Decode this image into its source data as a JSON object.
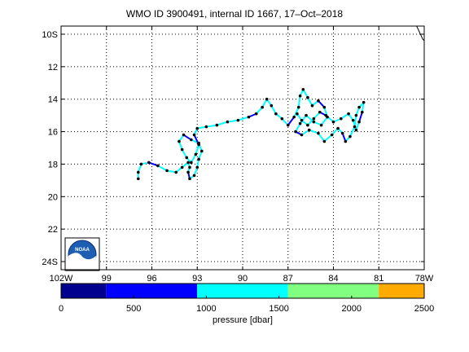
{
  "title": "WMO ID 3900491, internal ID 1667, 17–Oct–2018",
  "map": {
    "lat_ticks": [
      "10S",
      "12",
      "14",
      "16",
      "18",
      "20",
      "22",
      "24S"
    ],
    "lat_values": [
      -10,
      -12,
      -14,
      -16,
      -18,
      -20,
      -22,
      -24
    ],
    "lon_ticks": [
      "102W",
      "99",
      "96",
      "93",
      "90",
      "87",
      "84",
      "81",
      "78W"
    ],
    "lon_values": [
      -102,
      -99,
      -96,
      -93,
      -90,
      -87,
      -84,
      -81,
      -78
    ],
    "lon_range": [
      -102,
      -78
    ],
    "lat_range": [
      -24.5,
      -9.5
    ],
    "grid": true,
    "logo_label": "NOAA",
    "trajectory_lonlat": [
      [
        -96.9,
        -18.9
      ],
      [
        -96.9,
        -18.5
      ],
      [
        -96.7,
        -18.0
      ],
      [
        -96.2,
        -17.9
      ],
      [
        -95.6,
        -18.1
      ],
      [
        -95.0,
        -18.4
      ],
      [
        -94.4,
        -18.5
      ],
      [
        -94.0,
        -18.2
      ],
      [
        -93.6,
        -17.9
      ],
      [
        -93.5,
        -18.2
      ],
      [
        -93.6,
        -18.5
      ],
      [
        -93.5,
        -18.9
      ],
      [
        -93.2,
        -18.7
      ],
      [
        -93.0,
        -18.2
      ],
      [
        -92.9,
        -17.7
      ],
      [
        -92.7,
        -17.2
      ],
      [
        -92.9,
        -16.7
      ],
      [
        -93.4,
        -16.5
      ],
      [
        -93.9,
        -16.2
      ],
      [
        -94.2,
        -16.6
      ],
      [
        -94.0,
        -17.1
      ],
      [
        -93.7,
        -17.6
      ],
      [
        -93.4,
        -17.9
      ],
      [
        -93.1,
        -17.4
      ],
      [
        -92.9,
        -16.8
      ],
      [
        -93.2,
        -16.2
      ],
      [
        -93.0,
        -15.8
      ],
      [
        -92.4,
        -15.7
      ],
      [
        -91.7,
        -15.6
      ],
      [
        -91.0,
        -15.4
      ],
      [
        -90.3,
        -15.3
      ],
      [
        -89.6,
        -15.1
      ],
      [
        -89.1,
        -14.9
      ],
      [
        -88.7,
        -14.5
      ],
      [
        -88.4,
        -14.0
      ],
      [
        -88.1,
        -14.4
      ],
      [
        -87.8,
        -14.9
      ],
      [
        -87.4,
        -15.2
      ],
      [
        -87.0,
        -15.6
      ],
      [
        -86.6,
        -15.1
      ],
      [
        -86.3,
        -14.5
      ],
      [
        -86.2,
        -13.8
      ],
      [
        -86.0,
        -13.4
      ],
      [
        -85.7,
        -13.9
      ],
      [
        -85.4,
        -14.4
      ],
      [
        -85.0,
        -14.1
      ],
      [
        -84.6,
        -14.5
      ],
      [
        -84.4,
        -15.1
      ],
      [
        -84.8,
        -15.6
      ],
      [
        -85.3,
        -15.4
      ],
      [
        -85.8,
        -15.0
      ],
      [
        -86.2,
        -15.5
      ],
      [
        -86.5,
        -16.0
      ],
      [
        -86.1,
        -16.2
      ],
      [
        -85.6,
        -15.9
      ],
      [
        -85.0,
        -16.1
      ],
      [
        -84.6,
        -16.6
      ],
      [
        -84.1,
        -16.2
      ],
      [
        -83.7,
        -15.8
      ],
      [
        -83.4,
        -16.1
      ],
      [
        -83.2,
        -16.6
      ],
      [
        -82.9,
        -16.3
      ],
      [
        -82.6,
        -15.7
      ],
      [
        -82.5,
        -15.0
      ],
      [
        -82.3,
        -14.5
      ],
      [
        -82.0,
        -14.2
      ],
      [
        -82.1,
        -14.8
      ],
      [
        -82.3,
        -15.4
      ],
      [
        -82.5,
        -15.9
      ],
      [
        -82.7,
        -15.3
      ],
      [
        -83.0,
        -14.9
      ],
      [
        -83.5,
        -15.2
      ],
      [
        -84.0,
        -15.4
      ],
      [
        -84.5,
        -15.0
      ],
      [
        -84.9,
        -14.8
      ],
      [
        -85.3,
        -15.2
      ],
      [
        -85.7,
        -15.6
      ],
      [
        -86.1,
        -15.3
      ],
      [
        -86.4,
        -14.9
      ]
    ]
  },
  "colorbar": {
    "label": "pressure [dbar]",
    "ticks": [
      "0",
      "500",
      "1000",
      "1500",
      "2000",
      "2500"
    ],
    "tick_values": [
      0,
      500,
      1000,
      1500,
      2000,
      2500
    ],
    "range": [
      0,
      2500
    ],
    "bins": [
      {
        "from": 0,
        "to": 312,
        "color": "#00008f"
      },
      {
        "from": 312,
        "to": 937,
        "color": "#0000ff"
      },
      {
        "from": 937,
        "to": 1562,
        "color": "#00ffff"
      },
      {
        "from": 1562,
        "to": 2187,
        "color": "#80ff80"
      },
      {
        "from": 2187,
        "to": 2500,
        "color": "#ffaa00"
      }
    ]
  },
  "colors": {
    "track_cyan": "#00ffff",
    "track_blue": "#0000ff",
    "marker": "#000000",
    "coast": "#000000"
  }
}
